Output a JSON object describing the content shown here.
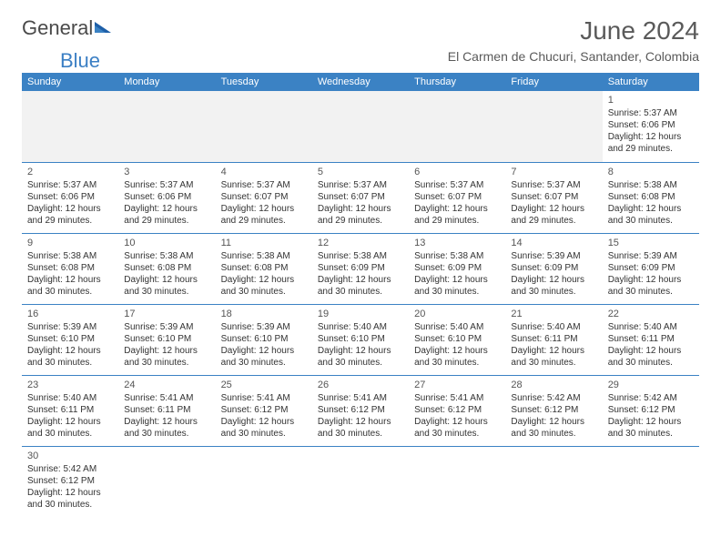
{
  "logo": {
    "text1": "General",
    "text2": "Blue"
  },
  "title": "June 2024",
  "location": "El Carmen de Chucuri, Santander, Colombia",
  "colors": {
    "header_bg": "#3b82c4",
    "header_text": "#ffffff",
    "border": "#3b82c4",
    "text": "#333333",
    "logo_blue": "#3b7fc4",
    "blank_bg": "#f2f2f2"
  },
  "day_names": [
    "Sunday",
    "Monday",
    "Tuesday",
    "Wednesday",
    "Thursday",
    "Friday",
    "Saturday"
  ],
  "weeks": [
    [
      {
        "blank": true
      },
      {
        "blank": true
      },
      {
        "blank": true
      },
      {
        "blank": true
      },
      {
        "blank": true
      },
      {
        "blank": true
      },
      {
        "day": "1",
        "sunrise": "Sunrise: 5:37 AM",
        "sunset": "Sunset: 6:06 PM",
        "daylight1": "Daylight: 12 hours",
        "daylight2": "and 29 minutes."
      }
    ],
    [
      {
        "day": "2",
        "sunrise": "Sunrise: 5:37 AM",
        "sunset": "Sunset: 6:06 PM",
        "daylight1": "Daylight: 12 hours",
        "daylight2": "and 29 minutes."
      },
      {
        "day": "3",
        "sunrise": "Sunrise: 5:37 AM",
        "sunset": "Sunset: 6:06 PM",
        "daylight1": "Daylight: 12 hours",
        "daylight2": "and 29 minutes."
      },
      {
        "day": "4",
        "sunrise": "Sunrise: 5:37 AM",
        "sunset": "Sunset: 6:07 PM",
        "daylight1": "Daylight: 12 hours",
        "daylight2": "and 29 minutes."
      },
      {
        "day": "5",
        "sunrise": "Sunrise: 5:37 AM",
        "sunset": "Sunset: 6:07 PM",
        "daylight1": "Daylight: 12 hours",
        "daylight2": "and 29 minutes."
      },
      {
        "day": "6",
        "sunrise": "Sunrise: 5:37 AM",
        "sunset": "Sunset: 6:07 PM",
        "daylight1": "Daylight: 12 hours",
        "daylight2": "and 29 minutes."
      },
      {
        "day": "7",
        "sunrise": "Sunrise: 5:37 AM",
        "sunset": "Sunset: 6:07 PM",
        "daylight1": "Daylight: 12 hours",
        "daylight2": "and 29 minutes."
      },
      {
        "day": "8",
        "sunrise": "Sunrise: 5:38 AM",
        "sunset": "Sunset: 6:08 PM",
        "daylight1": "Daylight: 12 hours",
        "daylight2": "and 30 minutes."
      }
    ],
    [
      {
        "day": "9",
        "sunrise": "Sunrise: 5:38 AM",
        "sunset": "Sunset: 6:08 PM",
        "daylight1": "Daylight: 12 hours",
        "daylight2": "and 30 minutes."
      },
      {
        "day": "10",
        "sunrise": "Sunrise: 5:38 AM",
        "sunset": "Sunset: 6:08 PM",
        "daylight1": "Daylight: 12 hours",
        "daylight2": "and 30 minutes."
      },
      {
        "day": "11",
        "sunrise": "Sunrise: 5:38 AM",
        "sunset": "Sunset: 6:08 PM",
        "daylight1": "Daylight: 12 hours",
        "daylight2": "and 30 minutes."
      },
      {
        "day": "12",
        "sunrise": "Sunrise: 5:38 AM",
        "sunset": "Sunset: 6:09 PM",
        "daylight1": "Daylight: 12 hours",
        "daylight2": "and 30 minutes."
      },
      {
        "day": "13",
        "sunrise": "Sunrise: 5:38 AM",
        "sunset": "Sunset: 6:09 PM",
        "daylight1": "Daylight: 12 hours",
        "daylight2": "and 30 minutes."
      },
      {
        "day": "14",
        "sunrise": "Sunrise: 5:39 AM",
        "sunset": "Sunset: 6:09 PM",
        "daylight1": "Daylight: 12 hours",
        "daylight2": "and 30 minutes."
      },
      {
        "day": "15",
        "sunrise": "Sunrise: 5:39 AM",
        "sunset": "Sunset: 6:09 PM",
        "daylight1": "Daylight: 12 hours",
        "daylight2": "and 30 minutes."
      }
    ],
    [
      {
        "day": "16",
        "sunrise": "Sunrise: 5:39 AM",
        "sunset": "Sunset: 6:10 PM",
        "daylight1": "Daylight: 12 hours",
        "daylight2": "and 30 minutes."
      },
      {
        "day": "17",
        "sunrise": "Sunrise: 5:39 AM",
        "sunset": "Sunset: 6:10 PM",
        "daylight1": "Daylight: 12 hours",
        "daylight2": "and 30 minutes."
      },
      {
        "day": "18",
        "sunrise": "Sunrise: 5:39 AM",
        "sunset": "Sunset: 6:10 PM",
        "daylight1": "Daylight: 12 hours",
        "daylight2": "and 30 minutes."
      },
      {
        "day": "19",
        "sunrise": "Sunrise: 5:40 AM",
        "sunset": "Sunset: 6:10 PM",
        "daylight1": "Daylight: 12 hours",
        "daylight2": "and 30 minutes."
      },
      {
        "day": "20",
        "sunrise": "Sunrise: 5:40 AM",
        "sunset": "Sunset: 6:10 PM",
        "daylight1": "Daylight: 12 hours",
        "daylight2": "and 30 minutes."
      },
      {
        "day": "21",
        "sunrise": "Sunrise: 5:40 AM",
        "sunset": "Sunset: 6:11 PM",
        "daylight1": "Daylight: 12 hours",
        "daylight2": "and 30 minutes."
      },
      {
        "day": "22",
        "sunrise": "Sunrise: 5:40 AM",
        "sunset": "Sunset: 6:11 PM",
        "daylight1": "Daylight: 12 hours",
        "daylight2": "and 30 minutes."
      }
    ],
    [
      {
        "day": "23",
        "sunrise": "Sunrise: 5:40 AM",
        "sunset": "Sunset: 6:11 PM",
        "daylight1": "Daylight: 12 hours",
        "daylight2": "and 30 minutes."
      },
      {
        "day": "24",
        "sunrise": "Sunrise: 5:41 AM",
        "sunset": "Sunset: 6:11 PM",
        "daylight1": "Daylight: 12 hours",
        "daylight2": "and 30 minutes."
      },
      {
        "day": "25",
        "sunrise": "Sunrise: 5:41 AM",
        "sunset": "Sunset: 6:12 PM",
        "daylight1": "Daylight: 12 hours",
        "daylight2": "and 30 minutes."
      },
      {
        "day": "26",
        "sunrise": "Sunrise: 5:41 AM",
        "sunset": "Sunset: 6:12 PM",
        "daylight1": "Daylight: 12 hours",
        "daylight2": "and 30 minutes."
      },
      {
        "day": "27",
        "sunrise": "Sunrise: 5:41 AM",
        "sunset": "Sunset: 6:12 PM",
        "daylight1": "Daylight: 12 hours",
        "daylight2": "and 30 minutes."
      },
      {
        "day": "28",
        "sunrise": "Sunrise: 5:42 AM",
        "sunset": "Sunset: 6:12 PM",
        "daylight1": "Daylight: 12 hours",
        "daylight2": "and 30 minutes."
      },
      {
        "day": "29",
        "sunrise": "Sunrise: 5:42 AM",
        "sunset": "Sunset: 6:12 PM",
        "daylight1": "Daylight: 12 hours",
        "daylight2": "and 30 minutes."
      }
    ],
    [
      {
        "day": "30",
        "sunrise": "Sunrise: 5:42 AM",
        "sunset": "Sunset: 6:12 PM",
        "daylight1": "Daylight: 12 hours",
        "daylight2": "and 30 minutes."
      },
      {
        "blank": true,
        "noborder": true
      },
      {
        "blank": true,
        "noborder": true
      },
      {
        "blank": true,
        "noborder": true
      },
      {
        "blank": true,
        "noborder": true
      },
      {
        "blank": true,
        "noborder": true
      },
      {
        "blank": true,
        "noborder": true
      }
    ]
  ]
}
